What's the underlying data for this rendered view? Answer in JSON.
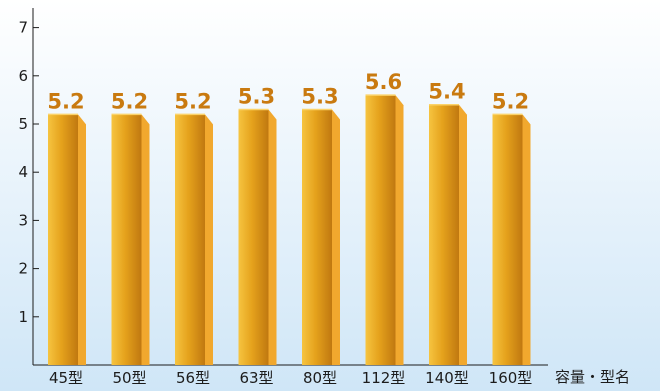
{
  "chart_data": {
    "type": "bar",
    "categories": [
      "45型",
      "50型",
      "56型",
      "63型",
      "80型",
      "112型",
      "140型",
      "160型"
    ],
    "values": [
      5.2,
      5.2,
      5.2,
      5.3,
      5.3,
      5.6,
      5.4,
      5.2
    ],
    "value_labels": [
      "5.2",
      "5.2",
      "5.2",
      "5.3",
      "5.3",
      "5.6",
      "5.4",
      "5.2"
    ],
    "title": "",
    "xlabel": "容量・型名",
    "ylabel": "",
    "ylim": [
      0,
      7.5
    ],
    "yticks": [
      "1",
      "2",
      "3",
      "4",
      "5",
      "6",
      "7"
    ],
    "grid": false,
    "legend": "none",
    "colors": {
      "background_top": "#ffffff",
      "background_bottom": "#cfe6f7",
      "bar_light": "#f6c440",
      "bar_mid": "#e5a21c",
      "bar_dark": "#c07810",
      "bar_side": "#f1a82e",
      "bar_top": "#fbd36a",
      "label": "#c97a10",
      "axis": "#1c1c1c"
    }
  }
}
